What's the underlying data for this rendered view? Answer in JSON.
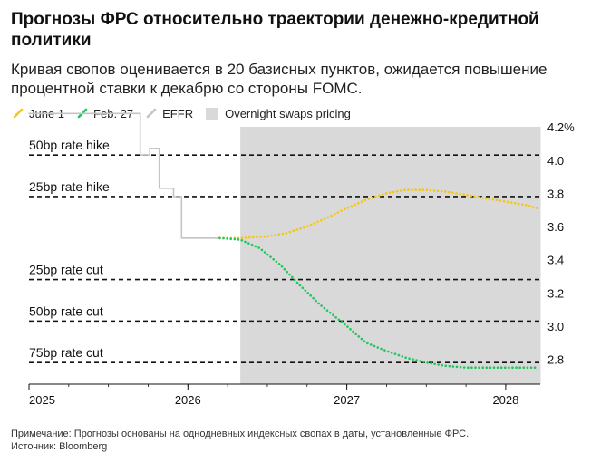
{
  "header": {
    "title": "Прогнозы ФРС относительно траектории денежно-кредитной политики",
    "subtitle": "Кривая свопов оценивается в 20 базисных пунктов, ожидается повышение процентной ставки к декабрю со стороны FOMC."
  },
  "legend": {
    "items": [
      {
        "label": "June 1",
        "color": "#f5c518"
      },
      {
        "label": "Feb. 27",
        "color": "#22c55e"
      },
      {
        "label": "EFFR",
        "color": "#c4c4c4"
      },
      {
        "label": "Overnight swaps pricing",
        "color": "#d9d9d9"
      }
    ]
  },
  "footer": {
    "note": "Примечание: Прогнозы основаны на однодневных индексных свопах в даты, установленные ФРС.",
    "source": "Источник: Bloomberg"
  },
  "chart_data": {
    "type": "line",
    "xlim": [
      2025.0,
      2028.22
    ],
    "ylim": [
      2.7,
      4.25
    ],
    "x_ticks": [
      {
        "value": 2025,
        "label": "2025"
      },
      {
        "value": 2026,
        "label": "2026"
      },
      {
        "value": 2027,
        "label": "2027"
      },
      {
        "value": 2028,
        "label": "2028"
      }
    ],
    "y_ticks": [
      {
        "value": 4.2,
        "label": "4.2%"
      },
      {
        "value": 4.0,
        "label": "4.0"
      },
      {
        "value": 3.8,
        "label": "3.8"
      },
      {
        "value": 3.6,
        "label": "3.6"
      },
      {
        "value": 3.4,
        "label": "3.4"
      },
      {
        "value": 3.2,
        "label": "3.2"
      },
      {
        "value": 3.0,
        "label": "3.0"
      },
      {
        "value": 2.8,
        "label": "2.8"
      }
    ],
    "shaded_region": {
      "label": "Overnight swaps pricing",
      "x_start": 2026.33,
      "x_end": 2028.22,
      "color": "#d9d9d9"
    },
    "reference_lines": [
      {
        "label": "50bp rate hike",
        "y": 4.08
      },
      {
        "label": "25bp rate hike",
        "y": 3.83
      },
      {
        "label": "25bp rate cut",
        "y": 3.33
      },
      {
        "label": "50bp rate cut",
        "y": 3.08
      },
      {
        "label": "75bp rate cut",
        "y": 2.83
      }
    ],
    "series": [
      {
        "name": "EFFR",
        "color": "#c4c4c4",
        "style": "solid",
        "x": [
          2025.0,
          2025.7,
          2025.7,
          2025.76,
          2025.76,
          2025.82,
          2025.82,
          2025.91,
          2025.91,
          2025.96,
          2025.96,
          2026.2
        ],
        "y": [
          4.33,
          4.33,
          4.08,
          4.08,
          4.12,
          4.12,
          3.88,
          3.88,
          3.83,
          3.83,
          3.58,
          3.58
        ]
      },
      {
        "name": "June 1",
        "color": "#f5c518",
        "style": "dotted",
        "x": [
          2026.2,
          2026.33,
          2026.5,
          2026.62,
          2026.75,
          2026.87,
          2027.0,
          2027.12,
          2027.25,
          2027.37,
          2027.5,
          2027.62,
          2027.75,
          2027.87,
          2028.0,
          2028.12,
          2028.2
        ],
        "y": [
          3.58,
          3.58,
          3.59,
          3.61,
          3.65,
          3.7,
          3.76,
          3.81,
          3.85,
          3.87,
          3.87,
          3.86,
          3.84,
          3.82,
          3.8,
          3.78,
          3.76
        ]
      },
      {
        "name": "Feb. 27",
        "color": "#22c55e",
        "style": "dotted",
        "x": [
          2026.2,
          2026.33,
          2026.45,
          2026.58,
          2026.7,
          2026.83,
          2027.0,
          2027.12,
          2027.25,
          2027.37,
          2027.5,
          2027.62,
          2027.75,
          2027.87,
          2028.0,
          2028.12,
          2028.2
        ],
        "y": [
          3.58,
          3.57,
          3.52,
          3.42,
          3.3,
          3.18,
          3.05,
          2.95,
          2.9,
          2.86,
          2.83,
          2.81,
          2.8,
          2.8,
          2.8,
          2.8,
          2.8
        ]
      }
    ]
  }
}
